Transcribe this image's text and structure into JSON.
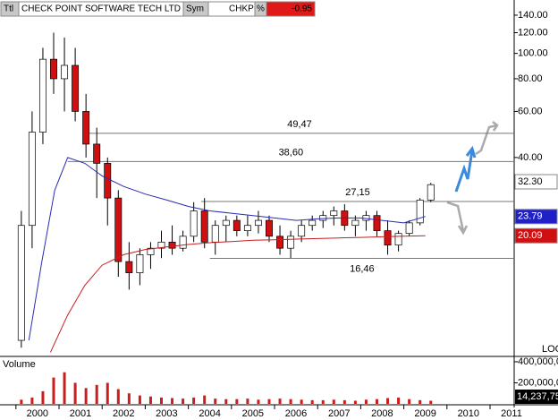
{
  "header": {
    "ttl": "Ttl",
    "title": "CHECK POINT SOFTWARE TECH LTD",
    "sym": "Sym",
    "symbol": "CHKP",
    "pct": "%",
    "change": "-0.95"
  },
  "chart_data": [
    {
      "type": "candlestick",
      "log_scale": true,
      "up_color": "#ffffff",
      "down_color": "#d01010",
      "xlim": [
        1999.63,
        2011.56
      ],
      "xticks": [
        2000,
        2001,
        2002,
        2003,
        2004,
        2005,
        2006,
        2007,
        2008,
        2009,
        2010,
        2011
      ],
      "ylim": [
        7,
        160
      ],
      "yticks": [
        {
          "value": 140,
          "label": "140.00"
        },
        {
          "value": 120,
          "label": "120.00"
        },
        {
          "value": 100,
          "label": "100.00"
        },
        {
          "value": 80,
          "label": "80.00"
        },
        {
          "value": 60,
          "label": "60.00"
        },
        {
          "value": 40,
          "label": "40.00"
        }
      ],
      "x": [
        2000.125,
        2000.375,
        2000.625,
        2000.875,
        2001.125,
        2001.375,
        2001.625,
        2001.875,
        2002.125,
        2002.375,
        2002.625,
        2002.875,
        2003.125,
        2003.375,
        2003.625,
        2003.875,
        2004.125,
        2004.375,
        2004.625,
        2004.875,
        2005.125,
        2005.375,
        2005.625,
        2005.875,
        2006.125,
        2006.375,
        2006.625,
        2006.875,
        2007.125,
        2007.375,
        2007.625,
        2007.875,
        2008.125,
        2008.375,
        2008.625,
        2008.875,
        2009.125,
        2009.375,
        2009.625
      ],
      "open": [
        8,
        22,
        50,
        95,
        80,
        90,
        60,
        45,
        38,
        28,
        16,
        14.5,
        17,
        18,
        19,
        18,
        20,
        25,
        19,
        22,
        23,
        21,
        22,
        23,
        20,
        18,
        20,
        22,
        23,
        24,
        25,
        22,
        23,
        24,
        21,
        18.5,
        20.5,
        22.5,
        27.5
      ],
      "high": [
        25,
        60,
        105,
        120,
        115,
        105,
        70,
        52,
        40,
        30,
        19,
        18,
        19,
        21,
        22,
        21,
        27,
        28,
        23,
        24,
        24,
        24,
        25,
        24,
        22,
        21,
        23,
        24,
        25,
        26,
        26.5,
        24,
        25,
        25,
        23,
        21,
        23,
        28,
        32
      ],
      "low": [
        7.5,
        18,
        45,
        70,
        60,
        55,
        40,
        28,
        22,
        14,
        12.5,
        13,
        15,
        16.5,
        17,
        17.5,
        19,
        18,
        17,
        19,
        20,
        20,
        20.5,
        19,
        17,
        16.5,
        19,
        21,
        21.5,
        22,
        21,
        20,
        21,
        20,
        17,
        17.5,
        20,
        22,
        27
      ],
      "close": [
        22,
        50,
        95,
        80,
        90,
        60,
        45,
        38,
        28,
        16,
        14.5,
        17,
        18,
        19,
        18,
        20,
        25,
        19,
        22,
        23,
        21,
        22,
        23,
        20,
        18,
        20,
        22,
        23,
        24,
        25,
        22,
        23,
        24,
        21,
        18.5,
        20.5,
        22.5,
        27.5,
        31.5
      ],
      "lines": [
        {
          "color": "#2a2ab4",
          "x": [
            2000.3,
            2000.6,
            2000.9,
            2001.2,
            2001.6,
            2002.0,
            2002.5,
            2003.0,
            2003.5,
            2004.0,
            2004.5,
            2005.0,
            2005.5,
            2006.0,
            2006.5,
            2007.0,
            2007.5,
            2008.0,
            2008.5,
            2009.0,
            2009.5
          ],
          "values": [
            8,
            16,
            30,
            40,
            38,
            34,
            31,
            29,
            27.5,
            26,
            25,
            24.5,
            24,
            23.5,
            23,
            23.3,
            23.5,
            23.5,
            23,
            22.5,
            23.8
          ]
        },
        {
          "color": "#c81e1e",
          "x": [
            2000.8,
            2001.2,
            2001.6,
            2002.0,
            2002.5,
            2003.0,
            2003.5,
            2004.0,
            2004.5,
            2005.0,
            2005.5,
            2006.0,
            2006.5,
            2007.0,
            2007.5,
            2008.0,
            2008.5,
            2009.0,
            2009.5
          ],
          "values": [
            7.2,
            10,
            13,
            15.5,
            17,
            17.8,
            18.2,
            18.6,
            18.9,
            19.1,
            19.3,
            19.4,
            19.5,
            19.6,
            19.7,
            19.8,
            19.9,
            20,
            20.09
          ]
        }
      ],
      "levels": [
        {
          "value": 49.47,
          "label": "49,47",
          "from": 2001.6
        },
        {
          "value": 38.6,
          "label": "38,60",
          "from": 2001.2
        },
        {
          "value": 27.15,
          "label": "27,15",
          "from": 2004.3
        },
        {
          "value": 16.46,
          "label": "16,46",
          "from": 2004.5
        }
      ],
      "last_labels": [
        {
          "value": 32.3,
          "label": "32.30",
          "color": "#ffffff",
          "text_color": "#000000"
        },
        {
          "value": 23.79,
          "label": "23.79",
          "color": "#2020c8",
          "text_color": "#ffffff"
        },
        {
          "value": 20.09,
          "label": "20.09",
          "color": "#d01010",
          "text_color": "#ffffff"
        }
      ],
      "scale_label": "LOG"
    },
    {
      "type": "bar",
      "title": "Volume",
      "color": "#c81e1e",
      "ylim": [
        0,
        442000000
      ],
      "yticks": [
        {
          "value": 200000000,
          "label": "200,000,0"
        },
        {
          "value": 400000000,
          "label": "400,000,0"
        }
      ],
      "x": [
        2000.125,
        2000.375,
        2000.625,
        2000.875,
        2001.125,
        2001.375,
        2001.625,
        2001.875,
        2002.125,
        2002.375,
        2002.625,
        2002.875,
        2003.125,
        2003.375,
        2003.625,
        2003.875,
        2004.125,
        2004.375,
        2004.625,
        2004.875,
        2005.125,
        2005.375,
        2005.625,
        2005.875,
        2006.125,
        2006.375,
        2006.625,
        2006.875,
        2007.125,
        2007.375,
        2007.625,
        2007.875,
        2008.125,
        2008.375,
        2008.625,
        2008.875,
        2009.125,
        2009.375,
        2009.625
      ],
      "values": [
        40000000,
        60000000,
        120000000,
        250000000,
        300000000,
        200000000,
        150000000,
        180000000,
        200000000,
        140000000,
        100000000,
        80000000,
        70000000,
        60000000,
        55000000,
        50000000,
        60000000,
        80000000,
        50000000,
        45000000,
        45000000,
        50000000,
        40000000,
        45000000,
        50000000,
        45000000,
        40000000,
        35000000,
        35000000,
        40000000,
        35000000,
        30000000,
        40000000,
        45000000,
        55000000,
        60000000,
        45000000,
        35000000,
        30000000
      ],
      "last_label": {
        "value": 14237750,
        "label": "14,237,75"
      }
    }
  ]
}
